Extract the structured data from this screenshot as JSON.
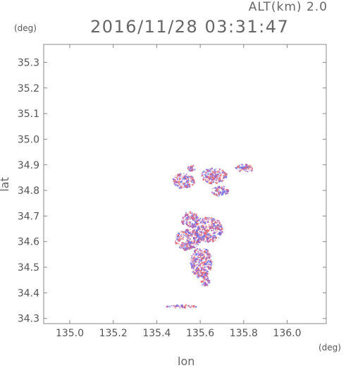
{
  "header": {
    "alt_label": "ALT(km) 2.0",
    "timestamp": "2016/11/28 03:31:47"
  },
  "chart_data": {
    "type": "heatmap",
    "title": "2016/11/28 03:31:47",
    "subtitle": "ALT(km) 2.0",
    "xlabel": "lon",
    "ylabel": "lat",
    "x_unit": "(deg)",
    "y_unit": "(deg)",
    "xlim": [
      134.88,
      136.18
    ],
    "ylim": [
      34.28,
      35.37
    ],
    "x_ticks": [
      135.0,
      135.2,
      135.4,
      135.6,
      135.8,
      136.0
    ],
    "x_tick_labels": [
      "135.0",
      "135.2",
      "135.4",
      "135.6",
      "135.8",
      "136.0"
    ],
    "y_ticks": [
      34.3,
      34.4,
      34.5,
      34.6,
      34.7,
      34.8,
      34.9,
      35.0,
      35.1,
      35.2,
      35.3
    ],
    "y_tick_labels": [
      "34.3",
      "34.4",
      "34.5",
      "34.6",
      "34.7",
      "34.8",
      "34.9",
      "35.0",
      "35.1",
      "35.2",
      "35.3"
    ],
    "grid": false,
    "colors": {
      "positive": "#e87070",
      "negative": "#6f6fe8",
      "mixed": "#b060b0"
    },
    "clusters": [
      {
        "lon": 135.56,
        "lat": 34.89,
        "r_lon": 0.02,
        "r_lat": 0.012
      },
      {
        "lon": 135.52,
        "lat": 34.84,
        "r_lon": 0.05,
        "r_lat": 0.03
      },
      {
        "lon": 135.66,
        "lat": 34.86,
        "r_lon": 0.06,
        "r_lat": 0.03
      },
      {
        "lon": 135.69,
        "lat": 34.8,
        "r_lon": 0.04,
        "r_lat": 0.02
      },
      {
        "lon": 135.8,
        "lat": 34.89,
        "r_lon": 0.04,
        "r_lat": 0.015
      },
      {
        "lon": 135.55,
        "lat": 34.69,
        "r_lon": 0.04,
        "r_lat": 0.03
      },
      {
        "lon": 135.63,
        "lat": 34.65,
        "r_lon": 0.07,
        "r_lat": 0.05
      },
      {
        "lon": 135.54,
        "lat": 34.61,
        "r_lon": 0.06,
        "r_lat": 0.04
      },
      {
        "lon": 135.6,
        "lat": 34.52,
        "r_lon": 0.05,
        "r_lat": 0.06
      },
      {
        "lon": 135.62,
        "lat": 34.45,
        "r_lon": 0.02,
        "r_lat": 0.02
      },
      {
        "lon": 135.51,
        "lat": 34.35,
        "r_lon": 0.07,
        "r_lat": 0.006
      }
    ]
  }
}
